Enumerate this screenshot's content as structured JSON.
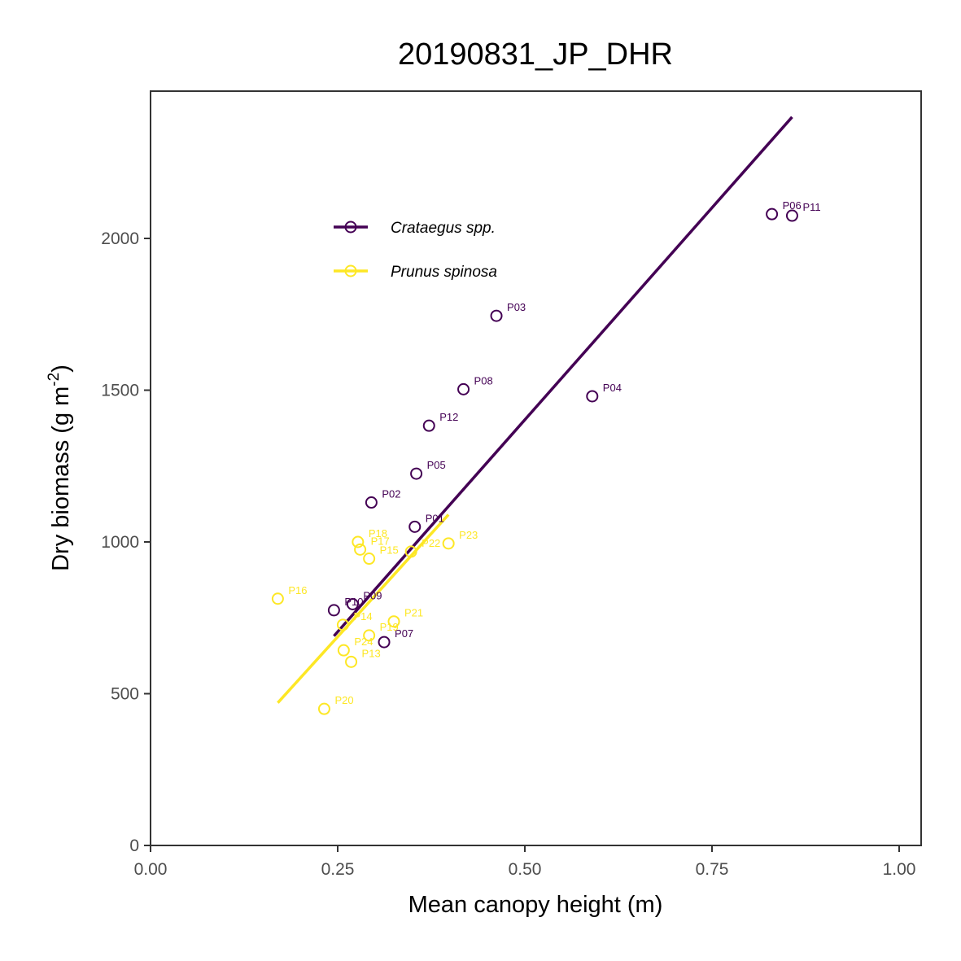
{
  "chart_data": {
    "type": "scatter",
    "title": "20190831_JP_DHR",
    "xlabel": "Mean canopy height (m)",
    "ylabel_main": "Dry biomass (g m",
    "ylabel_sup": "-2",
    "ylabel_end": ")",
    "xlim": [
      0,
      1.03
    ],
    "ylim": [
      0,
      2420
    ],
    "xticks": [
      {
        "value": 0,
        "label": "0.00"
      },
      {
        "value": 0.25,
        "label": "0.25"
      },
      {
        "value": 0.5,
        "label": "0.50"
      },
      {
        "value": 0.75,
        "label": "0.75"
      },
      {
        "value": 1.0,
        "label": "1.00"
      }
    ],
    "yticks": [
      {
        "value": 0,
        "label": "0"
      },
      {
        "value": 500,
        "label": "500"
      },
      {
        "value": 1000,
        "label": "1000"
      },
      {
        "value": 1500,
        "label": "1500"
      },
      {
        "value": 2000,
        "label": "2000"
      }
    ],
    "grid": false,
    "legend_position": "top-left",
    "series": [
      {
        "name": "Crataegus spp.",
        "color": "#440154",
        "fit": {
          "x": [
            0.245,
            0.857
          ],
          "y": [
            690,
            2400
          ]
        },
        "points": [
          {
            "label": "P06",
            "x": 0.83,
            "y": 2080
          },
          {
            "label": "P11",
            "x": 0.857,
            "y": 2075
          },
          {
            "label": "P03",
            "x": 0.462,
            "y": 1745
          },
          {
            "label": "P08",
            "x": 0.418,
            "y": 1503
          },
          {
            "label": "P04",
            "x": 0.59,
            "y": 1480
          },
          {
            "label": "P12",
            "x": 0.372,
            "y": 1383
          },
          {
            "label": "P05",
            "x": 0.355,
            "y": 1225
          },
          {
            "label": "P02",
            "x": 0.295,
            "y": 1130
          },
          {
            "label": "P01",
            "x": 0.353,
            "y": 1050
          },
          {
            "label": "P09",
            "x": 0.27,
            "y": 795
          },
          {
            "label": "P10",
            "x": 0.245,
            "y": 775
          },
          {
            "label": "P07",
            "x": 0.312,
            "y": 670
          }
        ]
      },
      {
        "name": "Prunus spinosa",
        "color": "#FDE725",
        "fit": {
          "x": [
            0.17,
            0.398
          ],
          "y": [
            470,
            1090
          ]
        },
        "points": [
          {
            "label": "P23",
            "x": 0.398,
            "y": 995
          },
          {
            "label": "P22",
            "x": 0.348,
            "y": 968
          },
          {
            "label": "P18",
            "x": 0.277,
            "y": 1000
          },
          {
            "label": "P17",
            "x": 0.28,
            "y": 975
          },
          {
            "label": "P15",
            "x": 0.292,
            "y": 945
          },
          {
            "label": "P16",
            "x": 0.17,
            "y": 813
          },
          {
            "label": "P14",
            "x": 0.257,
            "y": 727
          },
          {
            "label": "P21",
            "x": 0.325,
            "y": 738
          },
          {
            "label": "P19",
            "x": 0.292,
            "y": 692
          },
          {
            "label": "P24",
            "x": 0.258,
            "y": 643
          },
          {
            "label": "P13",
            "x": 0.268,
            "y": 605
          },
          {
            "label": "P20",
            "x": 0.232,
            "y": 450
          }
        ]
      }
    ]
  }
}
